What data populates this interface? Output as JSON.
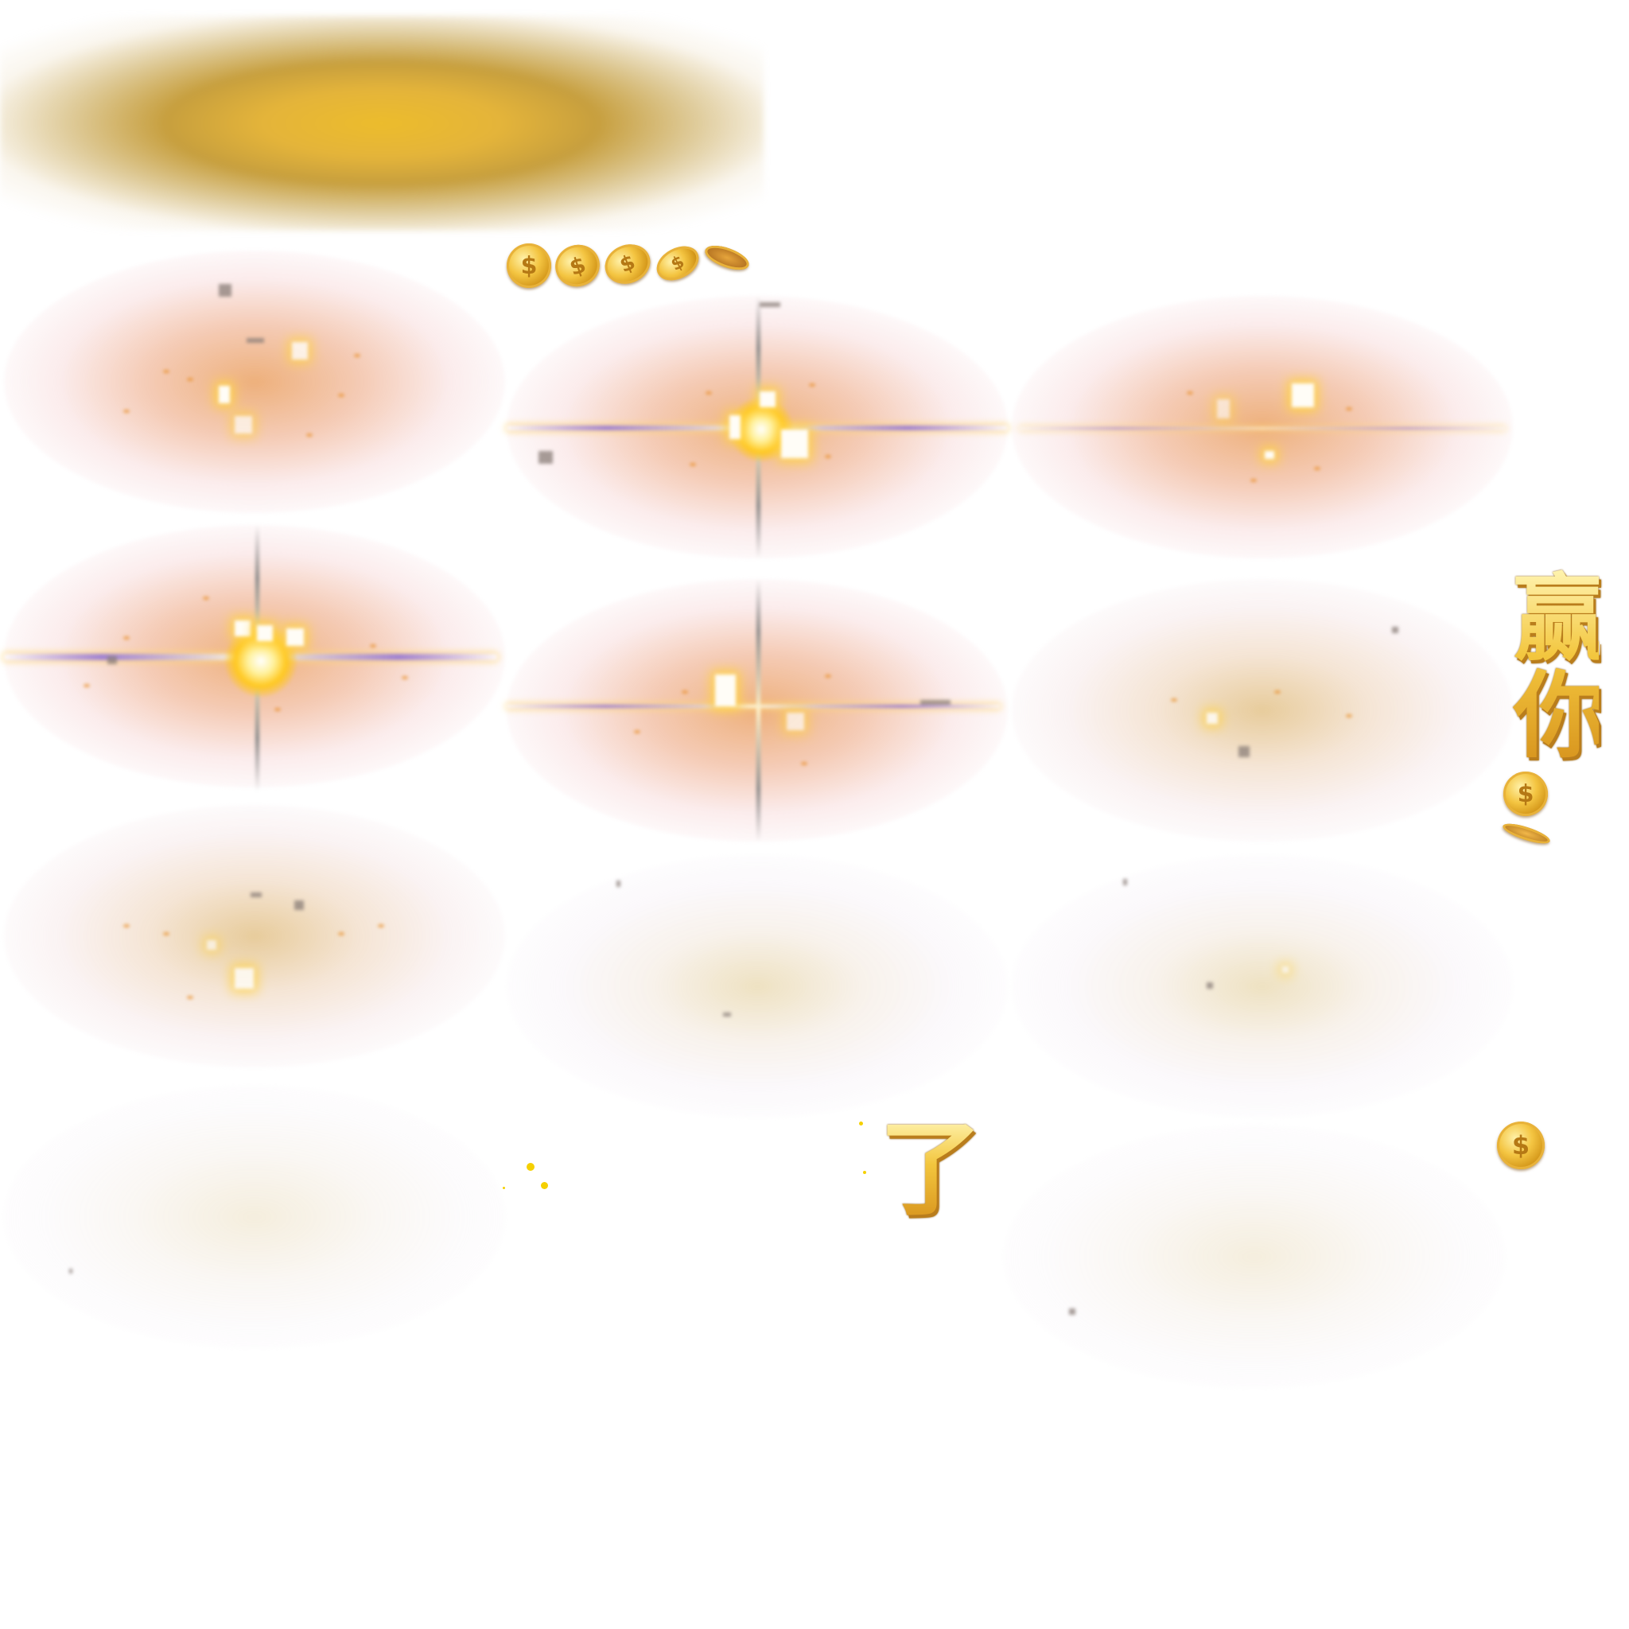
{
  "sheet": {
    "text_win": "赢你",
    "text_le": "了",
    "coin_symbol": "$",
    "colors": {
      "gold": "#ecbc2c",
      "orange_glow": "#e8912e",
      "flare_core": "#fff2a0",
      "streak": "#9a82d0"
    }
  }
}
